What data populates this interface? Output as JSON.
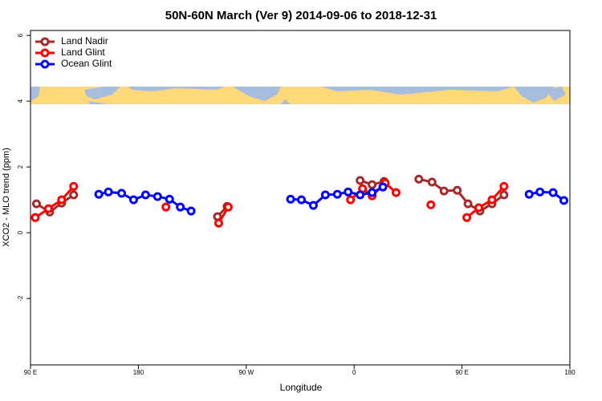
{
  "chart_data": {
    "type": "line",
    "title": "50N-60N March (Ver 9)   2014-09-06 to 2018-12-31",
    "x_label": "Longitude",
    "y_label": "XCO2 - MLO trend (ppm)",
    "xlim": [
      90,
      540
    ],
    "ylim": [
      -4.02,
      6.15
    ],
    "xticks": [
      {
        "value": 90,
        "label": "90 E"
      },
      180,
      {
        "value": 270,
        "label": "90 W"
      },
      {
        "value": 360,
        "label": "0"
      },
      {
        "value": 450,
        "label": "90 E"
      },
      {
        "value": 540,
        "label": "180"
      }
    ],
    "yticks": [
      -2,
      0,
      2,
      4,
      6
    ],
    "legend": "top-left",
    "series": [
      {
        "name": "Land Nadir",
        "color": "#a52a2a",
        "x": [
          95,
          106,
          116,
          126,
          null,
          246,
          254,
          null,
          365,
          375,
          385,
          null,
          414,
          425,
          435,
          446,
          455,
          465,
          475,
          485
        ],
        "values": [
          0.88,
          0.63,
          0.9,
          1.15,
          null,
          0.49,
          0.8,
          null,
          1.59,
          1.46,
          1.56,
          null,
          1.63,
          1.54,
          1.27,
          1.29,
          0.88,
          0.66,
          0.88,
          1.15
        ]
      },
      {
        "name": "Land Glint",
        "color": "#ff0000",
        "x": [
          94,
          105,
          116,
          126,
          null,
          203,
          null,
          247,
          255,
          null,
          357,
          367,
          375,
          386,
          395,
          null,
          424,
          null,
          454,
          464,
          475,
          485
        ],
        "values": [
          0.46,
          0.73,
          1.0,
          1.41,
          null,
          0.78,
          null,
          0.29,
          0.78,
          null,
          1.0,
          1.34,
          1.12,
          1.51,
          1.22,
          null,
          0.85,
          null,
          0.46,
          0.76,
          1.0,
          1.41
        ]
      },
      {
        "name": "Ocean Glint",
        "color": "#0000ff",
        "x": [
          147,
          155,
          166,
          176,
          186,
          196,
          206,
          215,
          224,
          null,
          307,
          316,
          326,
          336,
          346,
          355,
          365,
          375,
          384,
          null,
          506,
          515,
          526,
          535
        ],
        "values": [
          1.17,
          1.24,
          1.2,
          1.0,
          1.15,
          1.1,
          1.02,
          0.78,
          0.66,
          null,
          1.02,
          1.0,
          0.83,
          1.15,
          1.17,
          1.24,
          1.15,
          1.22,
          1.39,
          null,
          1.17,
          1.24,
          1.22,
          0.98
        ]
      }
    ]
  }
}
